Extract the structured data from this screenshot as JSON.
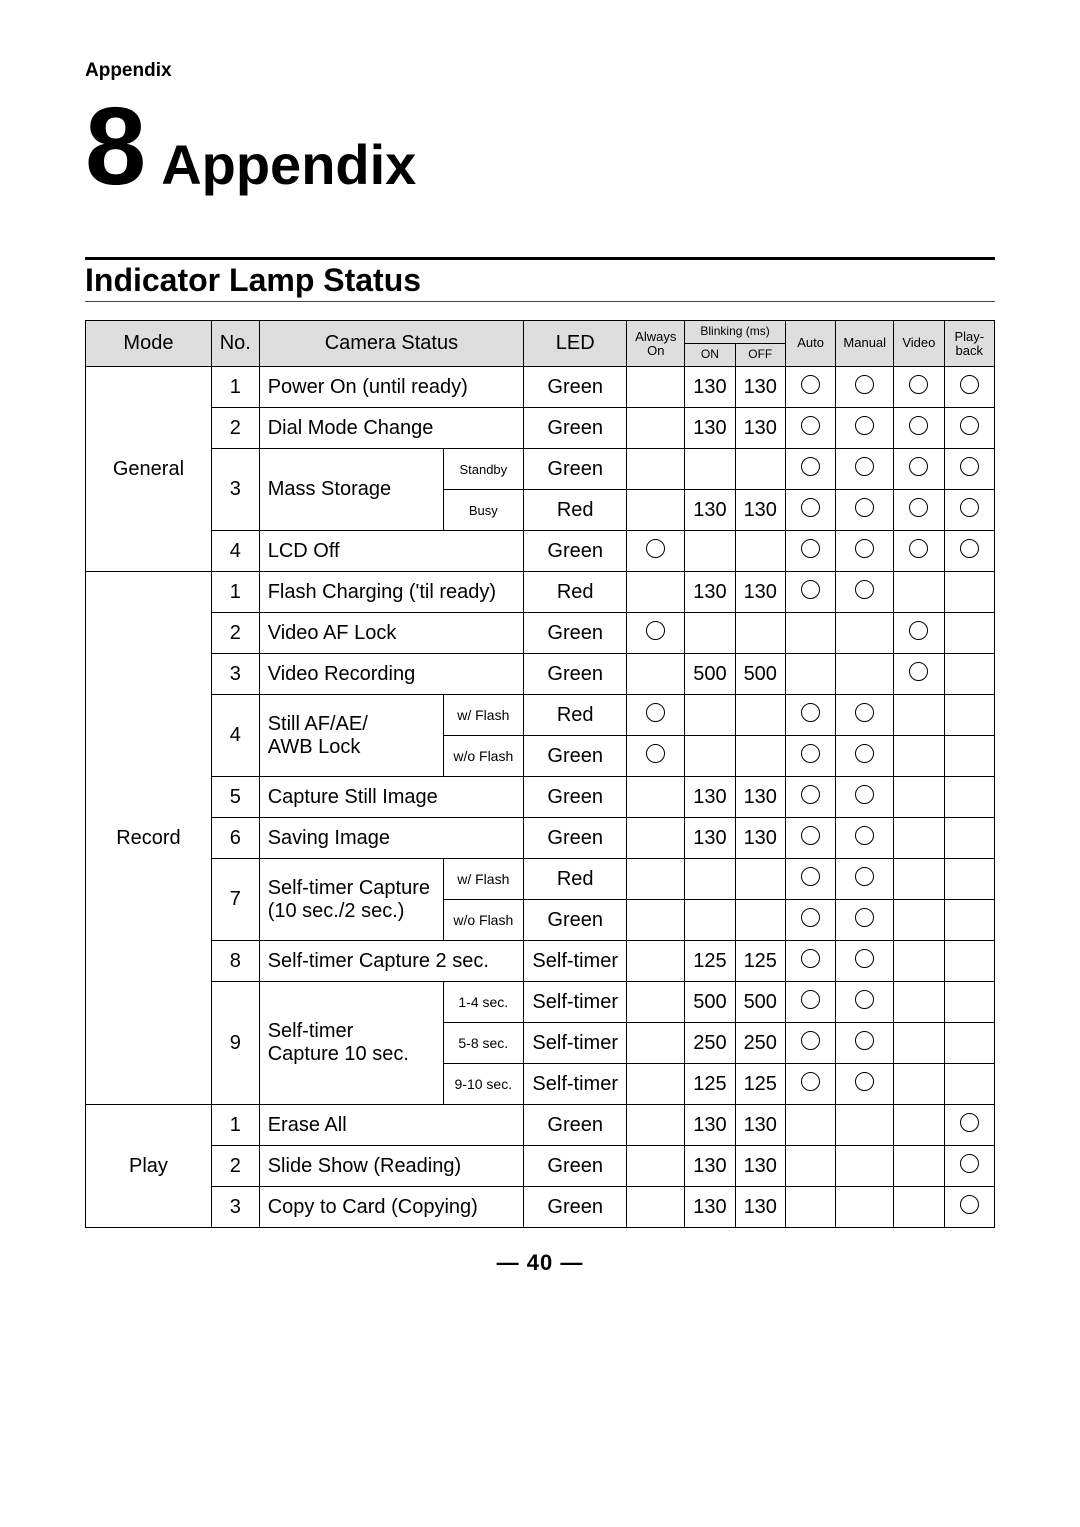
{
  "page": {
    "topLabel": "Appendix",
    "chapterNumber": "8",
    "chapterTitle": "Appendix",
    "sectionTitle": "Indicator Lamp Status",
    "footer": "— 40 —"
  },
  "headers": {
    "mode": "Mode",
    "no": "No.",
    "cameraStatus": "Camera Status",
    "led": "LED",
    "alwaysOn1": "Always",
    "alwaysOn2": "On",
    "blinking": "Blinking (ms)",
    "blinkOn": "ON",
    "blinkOff": "OFF",
    "auto": "Auto",
    "manual": "Manual",
    "video": "Video",
    "playback1": "Play-",
    "playback2": "back"
  },
  "modes": {
    "general": "General",
    "record": "Record",
    "play": "Play"
  },
  "rows": {
    "g1": {
      "no": "1",
      "status": "Power On (until ready)",
      "led": "Green",
      "always": "",
      "on": "130",
      "off": "130",
      "auto": "O",
      "manual": "O",
      "video": "O",
      "play": "O"
    },
    "g2": {
      "no": "2",
      "status": "Dial Mode Change",
      "led": "Green",
      "always": "",
      "on": "130",
      "off": "130",
      "auto": "O",
      "manual": "O",
      "video": "O",
      "play": "O"
    },
    "g3": {
      "no": "3",
      "status": "Mass Storage",
      "sub1": "Standby",
      "sub2": "Busy",
      "row1": {
        "led": "Green",
        "always": "",
        "on": "",
        "off": "",
        "auto": "O",
        "manual": "O",
        "video": "O",
        "play": "O"
      },
      "row2": {
        "led": "Red",
        "always": "",
        "on": "130",
        "off": "130",
        "auto": "O",
        "manual": "O",
        "video": "O",
        "play": "O"
      }
    },
    "g4": {
      "no": "4",
      "status": "LCD Off",
      "led": "Green",
      "always": "O",
      "on": "",
      "off": "",
      "auto": "O",
      "manual": "O",
      "video": "O",
      "play": "O"
    },
    "r1": {
      "no": "1",
      "status": "Flash Charging ('til ready)",
      "led": "Red",
      "always": "",
      "on": "130",
      "off": "130",
      "auto": "O",
      "manual": "O",
      "video": "",
      "play": ""
    },
    "r2": {
      "no": "2",
      "status": "Video AF Lock",
      "led": "Green",
      "always": "O",
      "on": "",
      "off": "",
      "auto": "",
      "manual": "",
      "video": "O",
      "play": ""
    },
    "r3": {
      "no": "3",
      "status": "Video Recording",
      "led": "Green",
      "always": "",
      "on": "500",
      "off": "500",
      "auto": "",
      "manual": "",
      "video": "O",
      "play": ""
    },
    "r4": {
      "no": "4",
      "status1": "Still AF/AE/",
      "status2": "AWB Lock",
      "sub1": "w/ Flash",
      "sub2": "w/o Flash",
      "row1": {
        "led": "Red",
        "always": "O",
        "on": "",
        "off": "",
        "auto": "O",
        "manual": "O",
        "video": "",
        "play": ""
      },
      "row2": {
        "led": "Green",
        "always": "O",
        "on": "",
        "off": "",
        "auto": "O",
        "manual": "O",
        "video": "",
        "play": ""
      }
    },
    "r5": {
      "no": "5",
      "status": "Capture Still Image",
      "led": "Green",
      "always": "",
      "on": "130",
      "off": "130",
      "auto": "O",
      "manual": "O",
      "video": "",
      "play": ""
    },
    "r6": {
      "no": "6",
      "status": "Saving Image",
      "led": "Green",
      "always": "",
      "on": "130",
      "off": "130",
      "auto": "O",
      "manual": "O",
      "video": "",
      "play": ""
    },
    "r7": {
      "no": "7",
      "status1": "Self-timer Capture",
      "status2": "(10 sec./2 sec.)",
      "sub1": "w/ Flash",
      "sub2": "w/o Flash",
      "row1": {
        "led": "Red",
        "always": "",
        "on": "",
        "off": "",
        "auto": "O",
        "manual": "O",
        "video": "",
        "play": ""
      },
      "row2": {
        "led": "Green",
        "always": "",
        "on": "",
        "off": "",
        "auto": "O",
        "manual": "O",
        "video": "",
        "play": ""
      }
    },
    "r8": {
      "no": "8",
      "status": "Self-timer Capture 2 sec.",
      "led": "Self-timer",
      "always": "",
      "on": "125",
      "off": "125",
      "auto": "O",
      "manual": "O",
      "video": "",
      "play": ""
    },
    "r9": {
      "no": "9",
      "status1": "Self-timer",
      "status2": "Capture 10 sec.",
      "sub1": "1-4 sec.",
      "sub2": "5-8 sec.",
      "sub3": "9-10 sec.",
      "row1": {
        "led": "Self-timer",
        "always": "",
        "on": "500",
        "off": "500",
        "auto": "O",
        "manual": "O",
        "video": "",
        "play": ""
      },
      "row2": {
        "led": "Self-timer",
        "always": "",
        "on": "250",
        "off": "250",
        "auto": "O",
        "manual": "O",
        "video": "",
        "play": ""
      },
      "row3": {
        "led": "Self-timer",
        "always": "",
        "on": "125",
        "off": "125",
        "auto": "O",
        "manual": "O",
        "video": "",
        "play": ""
      }
    },
    "p1": {
      "no": "1",
      "status": "Erase All",
      "led": "Green",
      "always": "",
      "on": "130",
      "off": "130",
      "auto": "",
      "manual": "",
      "video": "",
      "play": "O"
    },
    "p2": {
      "no": "2",
      "status": "Slide Show (Reading)",
      "led": "Green",
      "always": "",
      "on": "130",
      "off": "130",
      "auto": "",
      "manual": "",
      "video": "",
      "play": "O"
    },
    "p3": {
      "no": "3",
      "status": "Copy to Card (Copying)",
      "led": "Green",
      "always": "",
      "on": "130",
      "off": "130",
      "auto": "",
      "manual": "",
      "video": "",
      "play": "O"
    }
  }
}
